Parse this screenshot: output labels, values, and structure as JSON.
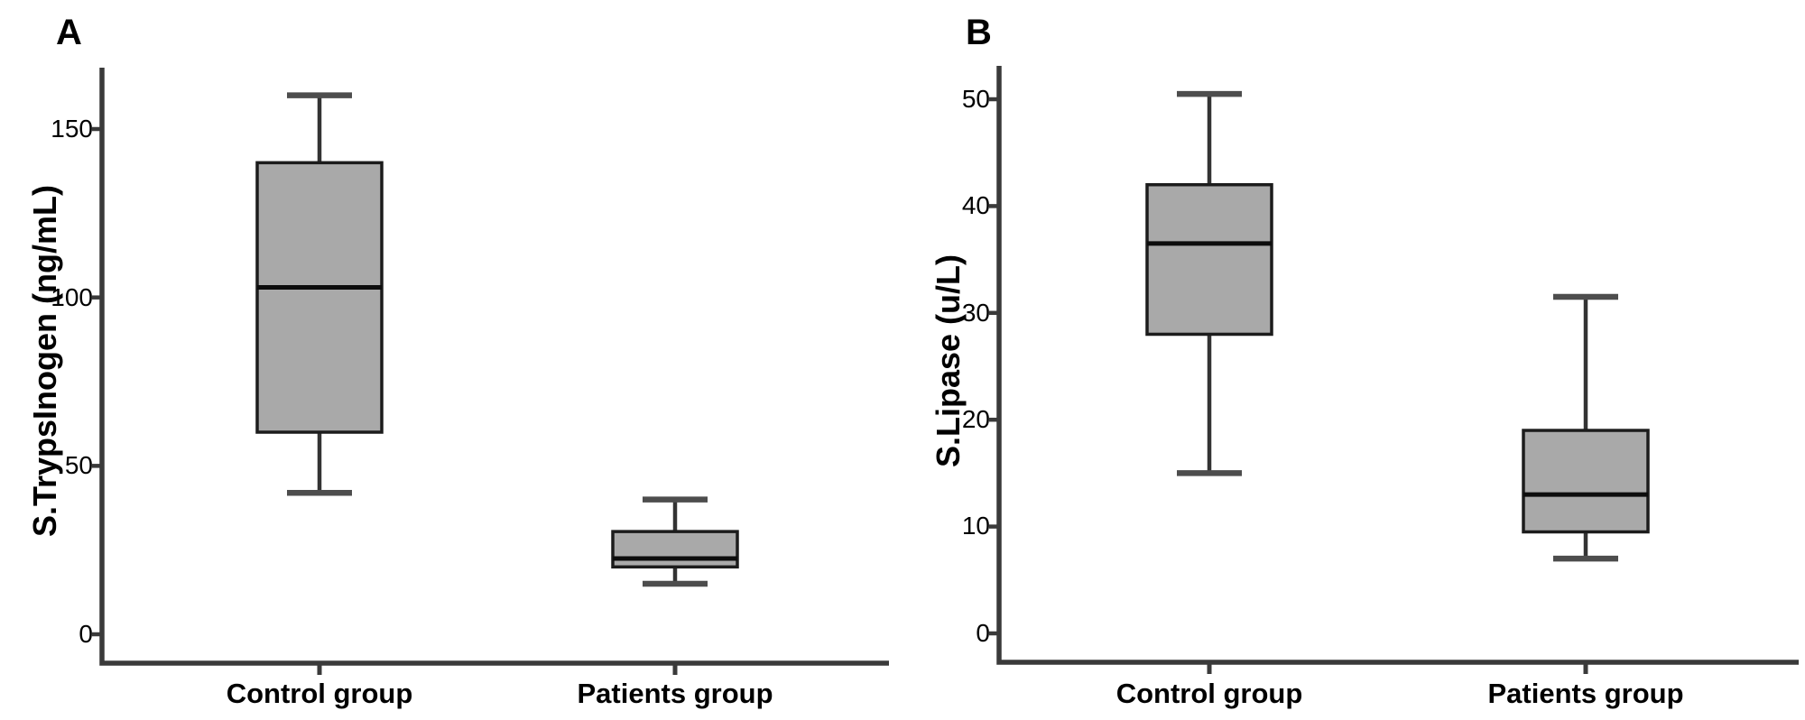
{
  "figure": {
    "description": "Two-panel box plot figure comparing Control group and Patients group",
    "background": "#ffffff"
  },
  "colors": {
    "box_fill": "#a9a9a9",
    "box_border": "#1c1c1c",
    "median": "#0d0d0d",
    "whisker": "#333333",
    "cap": "#4d4d4d",
    "axis": "#3a3a3a",
    "text": "#000000"
  },
  "chart_data": [
    {
      "type": "boxplot",
      "panel": "A",
      "ylabel": "S.TrypsInogen (ng/mL)",
      "xlabel": "",
      "categories": [
        "Control group",
        "Patients group"
      ],
      "yticks": [
        0,
        50,
        100,
        150
      ],
      "ylim": [
        0,
        168
      ],
      "grid": false,
      "series": [
        {
          "name": "Control group",
          "whisker_low": 42,
          "q1": 60,
          "median": 103,
          "q3": 140,
          "whisker_high": 160
        },
        {
          "name": "Patients group",
          "whisker_low": 15,
          "q1": 20,
          "median": 22.5,
          "q3": 30.5,
          "whisker_high": 40
        }
      ]
    },
    {
      "type": "boxplot",
      "panel": "B",
      "ylabel": "S.Lipase (u/L)",
      "xlabel": "",
      "categories": [
        "Control group",
        "Patients group"
      ],
      "yticks": [
        0,
        10,
        20,
        30,
        40,
        50
      ],
      "ylim": [
        0,
        53
      ],
      "grid": false,
      "series": [
        {
          "name": "Control group",
          "whisker_low": 15,
          "q1": 28,
          "median": 36.5,
          "q3": 42,
          "whisker_high": 50.5
        },
        {
          "name": "Patients group",
          "whisker_low": 7,
          "q1": 9.5,
          "median": 13,
          "q3": 19,
          "whisker_high": 31.5
        }
      ]
    }
  ]
}
